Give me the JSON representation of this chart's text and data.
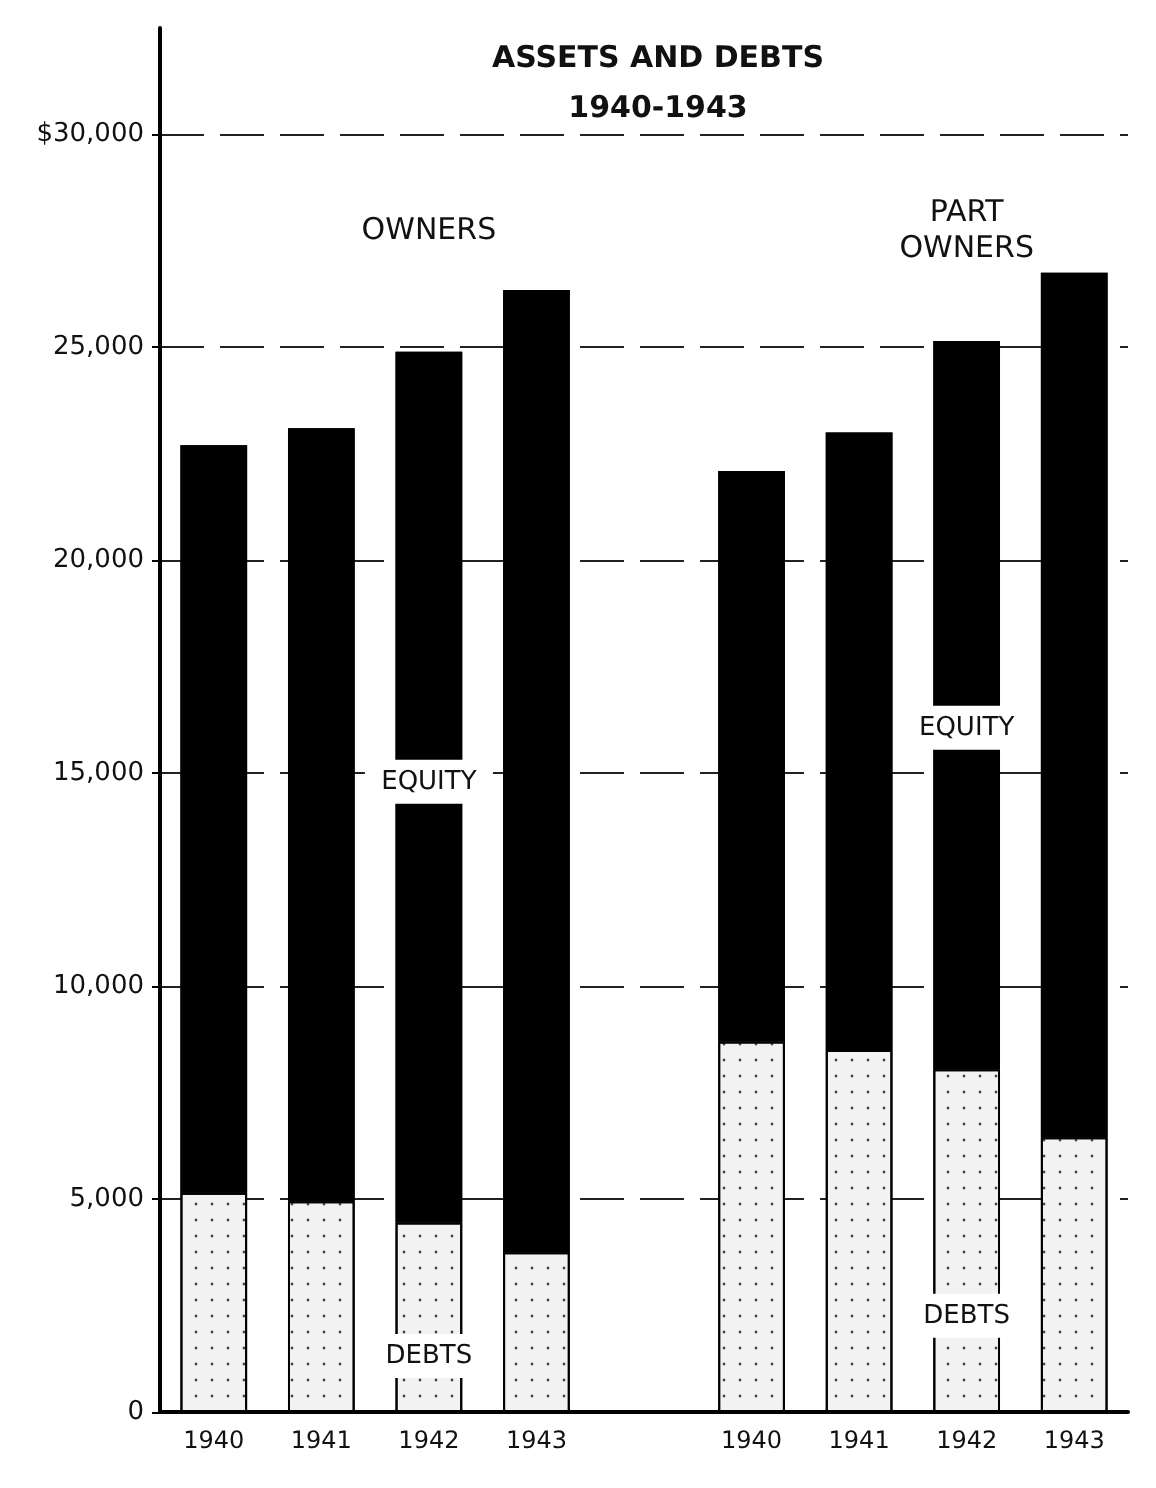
{
  "chart_data": {
    "type": "bar",
    "title": "ASSETS AND DEBTS",
    "subtitle": "1940-1943",
    "categories": [
      "1940",
      "1941",
      "1942",
      "1943",
      null,
      "1940",
      "1941",
      "1942",
      "1943"
    ],
    "stacked": true,
    "series": [
      {
        "name": "DEBTS",
        "color": "#f2f2f2",
        "values": [
          5150,
          4950,
          4450,
          3750,
          null,
          8700,
          8500,
          8050,
          6450
        ]
      },
      {
        "name": "EQUITY",
        "color": "#000000",
        "values": [
          17550,
          18150,
          20450,
          22600,
          null,
          13400,
          14500,
          17100,
          20300
        ]
      }
    ],
    "annotations": [
      "OWNERS",
      "PART OWNERS"
    ],
    "ylim": [
      0,
      32500
    ],
    "yticks": [
      {
        "value": 0,
        "label": "0"
      },
      {
        "value": 5000,
        "label": "5,000"
      },
      {
        "value": 10000,
        "label": "10,000"
      },
      {
        "value": 15000,
        "label": "15,000"
      },
      {
        "value": 20000,
        "label": "20,000"
      },
      {
        "value": 25000,
        "label": "25,000"
      },
      {
        "value": 30000,
        "label": "$30,000"
      }
    ],
    "grid": "y",
    "legend": false
  }
}
